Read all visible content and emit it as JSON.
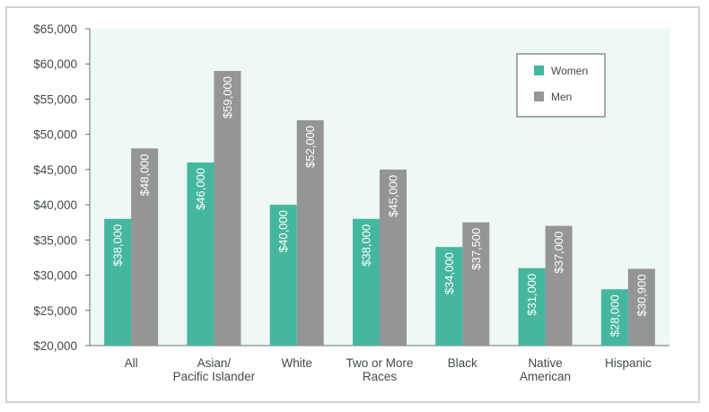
{
  "chart_data": {
    "type": "bar",
    "categories": [
      [
        "All"
      ],
      [
        "Asian/",
        "Pacific Islander"
      ],
      [
        "White"
      ],
      [
        "Two or More",
        "Races"
      ],
      [
        "Black"
      ],
      [
        "Native",
        "American"
      ],
      [
        "Hispanic"
      ]
    ],
    "series": [
      {
        "name": "Women",
        "color": "#45b79f",
        "values": [
          38000,
          46000,
          40000,
          38000,
          34000,
          31000,
          28000
        ],
        "labels": [
          "$38,000",
          "$46,000",
          "$40,000",
          "$38,000",
          "$34,000",
          "$31,000",
          "$28,000"
        ]
      },
      {
        "name": "Men",
        "color": "#949596",
        "values": [
          48000,
          59000,
          52000,
          45000,
          37500,
          37000,
          30900
        ],
        "labels": [
          "$48,000",
          "$59,000",
          "$52,000",
          "$45,000",
          "$37,500",
          "$37,000",
          "$30,900"
        ]
      }
    ],
    "ylim": [
      20000,
      65000
    ],
    "yticks": [
      20000,
      25000,
      30000,
      35000,
      40000,
      45000,
      50000,
      55000,
      60000,
      65000
    ],
    "ytick_labels": [
      "$20,000",
      "$25,000",
      "$30,000",
      "$35,000",
      "$40,000",
      "$45,000",
      "$50,000",
      "$55,000",
      "$60,000",
      "$65,000"
    ],
    "legend_position": "top-right",
    "plot_background": "#eef8f4",
    "grid": false
  }
}
